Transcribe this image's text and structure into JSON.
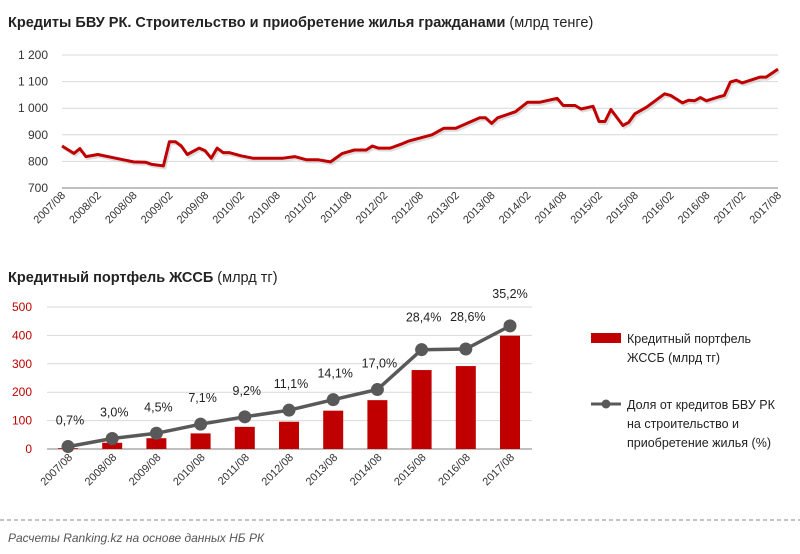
{
  "chart_data": [
    {
      "type": "line",
      "title": "Кредиты БВУ РК. Строительство и приобретение жилья гражданами",
      "title_unit": "(млрд тенге)",
      "ylim": [
        700,
        1200
      ],
      "yticks": [
        "700",
        "800",
        "900",
        "1 000",
        "1 100",
        "1 200"
      ],
      "ytick_values": [
        700,
        800,
        900,
        1000,
        1100,
        1200
      ],
      "xticks": [
        "2007/08",
        "2008/02",
        "2008/08",
        "2009/02",
        "2009/08",
        "2010/02",
        "2010/08",
        "2011/02",
        "2011/08",
        "2012/02",
        "2012/08",
        "2013/02",
        "2013/08",
        "2014/02",
        "2014/08",
        "2015/02",
        "2015/08",
        "2016/02",
        "2016/08",
        "2017/02",
        "2017/08"
      ],
      "x_unit": "months since 2007/08",
      "color": "#c00000",
      "points": [
        [
          0,
          858
        ],
        [
          2,
          830
        ],
        [
          3,
          848
        ],
        [
          4,
          818
        ],
        [
          6,
          826
        ],
        [
          9,
          812
        ],
        [
          12,
          798
        ],
        [
          14,
          797
        ],
        [
          15,
          789
        ],
        [
          17,
          783
        ],
        [
          18,
          874
        ],
        [
          19,
          874
        ],
        [
          20,
          858
        ],
        [
          21,
          826
        ],
        [
          23,
          850
        ],
        [
          24,
          840
        ],
        [
          25,
          812
        ],
        [
          26,
          850
        ],
        [
          27,
          833
        ],
        [
          28,
          833
        ],
        [
          30,
          821
        ],
        [
          32,
          812
        ],
        [
          37,
          812
        ],
        [
          39,
          818
        ],
        [
          41,
          806
        ],
        [
          43,
          806
        ],
        [
          45,
          798
        ],
        [
          47,
          830
        ],
        [
          49,
          843
        ],
        [
          51,
          843
        ],
        [
          52,
          858
        ],
        [
          53,
          850
        ],
        [
          55,
          850
        ],
        [
          57,
          866
        ],
        [
          58,
          876
        ],
        [
          62,
          900
        ],
        [
          64,
          925
        ],
        [
          66,
          925
        ],
        [
          70,
          964
        ],
        [
          71,
          964
        ],
        [
          72,
          943
        ],
        [
          73,
          964
        ],
        [
          76,
          987
        ],
        [
          78,
          1022
        ],
        [
          80,
          1022
        ],
        [
          83,
          1037
        ],
        [
          84,
          1010
        ],
        [
          86,
          1010
        ],
        [
          87,
          997
        ],
        [
          89,
          1007
        ],
        [
          90,
          950
        ],
        [
          91,
          950
        ],
        [
          92,
          995
        ],
        [
          94,
          935
        ],
        [
          95,
          947
        ],
        [
          96,
          979
        ],
        [
          98,
          1004
        ],
        [
          101,
          1054
        ],
        [
          102,
          1048
        ],
        [
          104,
          1020
        ],
        [
          105,
          1030
        ],
        [
          106,
          1028
        ],
        [
          107,
          1040
        ],
        [
          108,
          1028
        ],
        [
          110,
          1042
        ],
        [
          111,
          1048
        ],
        [
          112,
          1098
        ],
        [
          113,
          1105
        ],
        [
          114,
          1095
        ],
        [
          117,
          1117
        ],
        [
          118,
          1117
        ],
        [
          120,
          1147
        ]
      ]
    },
    {
      "type": "bar+line",
      "title": "Кредитный портфель ЖССБ",
      "title_unit": "(млрд тг)",
      "categories": [
        "2007/08",
        "2008/08",
        "2009/08",
        "2010/08",
        "2011/08",
        "2012/08",
        "2013/08",
        "2014/08",
        "2015/08",
        "2016/08",
        "2017/08"
      ],
      "ylim": [
        0,
        500
      ],
      "yticks": [
        "0",
        "100",
        "200",
        "300",
        "400",
        "500"
      ],
      "ytick_values": [
        0,
        100,
        200,
        300,
        400,
        500
      ],
      "y2lim": [
        0,
        40.6
      ],
      "series": [
        {
          "name": "Кредитный портфель ЖССБ (млрд тг)",
          "legend_lines": [
            "Кредитный портфель",
            "ЖССБ (млрд тг)"
          ],
          "type": "bar",
          "color": "#c00000",
          "values": [
            3,
            22,
            38,
            55,
            78,
            96,
            135,
            172,
            278,
            292,
            399
          ]
        },
        {
          "name": "Доля от кредитов БВУ РК на строительство и приобретение жилья (%)",
          "legend_lines": [
            "Доля от кредитов БВУ РК",
            "на строительство и",
            "приобретение жилья (%)"
          ],
          "type": "line",
          "color": "#595959",
          "values": [
            0.7,
            3.0,
            4.5,
            7.1,
            9.2,
            11.1,
            14.1,
            17.0,
            28.4,
            28.6,
            35.2
          ],
          "labels": [
            "0,7%",
            "3,0%",
            "4,5%",
            "7,1%",
            "9,2%",
            "11,1%",
            "14,1%",
            "17,0%",
            "28,4%",
            "28,6%",
            "35,2%"
          ]
        }
      ]
    }
  ],
  "footer": "Расчеты Ranking.kz на основе данных НБ РК"
}
